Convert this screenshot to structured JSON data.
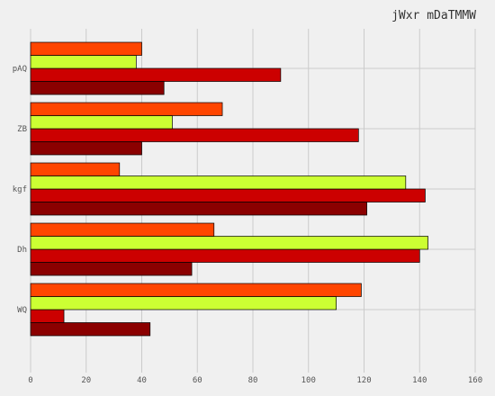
{
  "chart_data": {
    "type": "bar",
    "orientation": "horizontal",
    "title": "jWxr mDaTMMW",
    "xlabel": "",
    "ylabel": "",
    "xlim": [
      0,
      160
    ],
    "x_ticks": [
      0,
      20,
      40,
      60,
      80,
      100,
      120,
      140,
      160
    ],
    "grid": true,
    "categories": [
      "WQ",
      "Dh",
      "kgf",
      "ZB",
      "pAQ"
    ],
    "series": [
      {
        "color": "#8b0000",
        "values": [
          43,
          58,
          121,
          40,
          48
        ]
      },
      {
        "color": "#cc0000",
        "values": [
          12,
          140,
          142,
          118,
          90
        ]
      },
      {
        "color": "#ccff33",
        "values": [
          110,
          143,
          135,
          51,
          38
        ]
      },
      {
        "color": "#ff4500",
        "values": [
          119,
          66,
          32,
          69,
          40
        ]
      }
    ]
  }
}
